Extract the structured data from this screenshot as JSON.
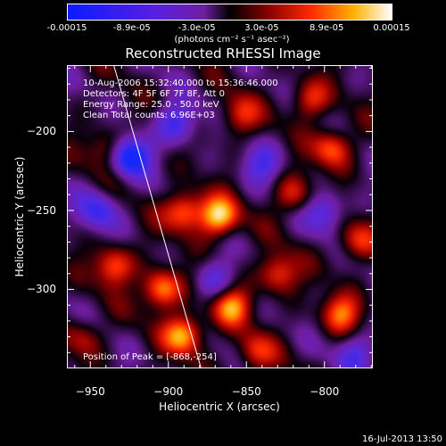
{
  "colorbar": {
    "ticks": [
      "-0.00015",
      "-8.9e-05",
      "-3.0e-05",
      "3.0e-05",
      "8.9e-05",
      "0.00015"
    ],
    "units": "(photons cm⁻² s⁻¹ asec⁻²)",
    "range": [
      -0.00015,
      0.00015
    ]
  },
  "chart_data": {
    "type": "heatmap",
    "title": "Reconstructed RHESSI Image",
    "xlabel": "Heliocentric X (arcsec)",
    "ylabel": "Heliocentric Y (arcsec)",
    "xlim": [
      -965,
      -769
    ],
    "ylim": [
      -350,
      -158
    ],
    "xticks": [
      -950,
      -900,
      -850,
      -800
    ],
    "yticks": [
      -200,
      -250,
      -300
    ],
    "xtick_labels": [
      "−950",
      "−900",
      "−850",
      "−800"
    ],
    "ytick_labels": [
      "−200",
      "−250",
      "−300"
    ],
    "info_lines": [
      "10-Aug-2006 15:32:40.000 to 15:36:46.000",
      "Detectors: 4F 5F 6F 7F 8F, Att 0",
      "Energy Range: 25.0 - 50.0 keV",
      "Clean    Total counts: 6.96E+03"
    ],
    "peak_label": "Position of Peak = [-868,-254]",
    "peak": [
      -868,
      -254
    ],
    "limb_line": [
      [
        -935,
        -158
      ],
      [
        -879,
        -350
      ]
    ],
    "hot_spots": [
      {
        "x": -868,
        "y": -254,
        "v": 1.0
      },
      {
        "x": -890,
        "y": -328,
        "v": 0.95
      },
      {
        "x": -905,
        "y": -300,
        "v": 0.9
      },
      {
        "x": -890,
        "y": -250,
        "v": 0.85
      },
      {
        "x": -935,
        "y": -285,
        "v": 0.75
      },
      {
        "x": -860,
        "y": -310,
        "v": 0.8
      },
      {
        "x": -830,
        "y": -290,
        "v": 0.7
      },
      {
        "x": -790,
        "y": -315,
        "v": 0.7
      },
      {
        "x": -795,
        "y": -210,
        "v": 0.75
      },
      {
        "x": -810,
        "y": -180,
        "v": 0.6
      },
      {
        "x": -855,
        "y": -190,
        "v": 0.55
      },
      {
        "x": -820,
        "y": -240,
        "v": 0.55
      },
      {
        "x": -940,
        "y": -210,
        "v": 0.5
      },
      {
        "x": -780,
        "y": -270,
        "v": 0.6
      },
      {
        "x": -955,
        "y": -330,
        "v": 0.45
      },
      {
        "x": -845,
        "y": -340,
        "v": 0.55
      }
    ],
    "cold_spots": [
      {
        "x": -925,
        "y": -215,
        "v": -1.0
      },
      {
        "x": -895,
        "y": -195,
        "v": -0.7
      },
      {
        "x": -870,
        "y": -295,
        "v": -0.5
      },
      {
        "x": -800,
        "y": -250,
        "v": -0.6
      },
      {
        "x": -945,
        "y": -250,
        "v": -0.6
      },
      {
        "x": -840,
        "y": -220,
        "v": -0.5
      },
      {
        "x": -780,
        "y": -340,
        "v": -0.5
      }
    ]
  },
  "footer": {
    "date": "16-Jul-2013 13:50"
  }
}
